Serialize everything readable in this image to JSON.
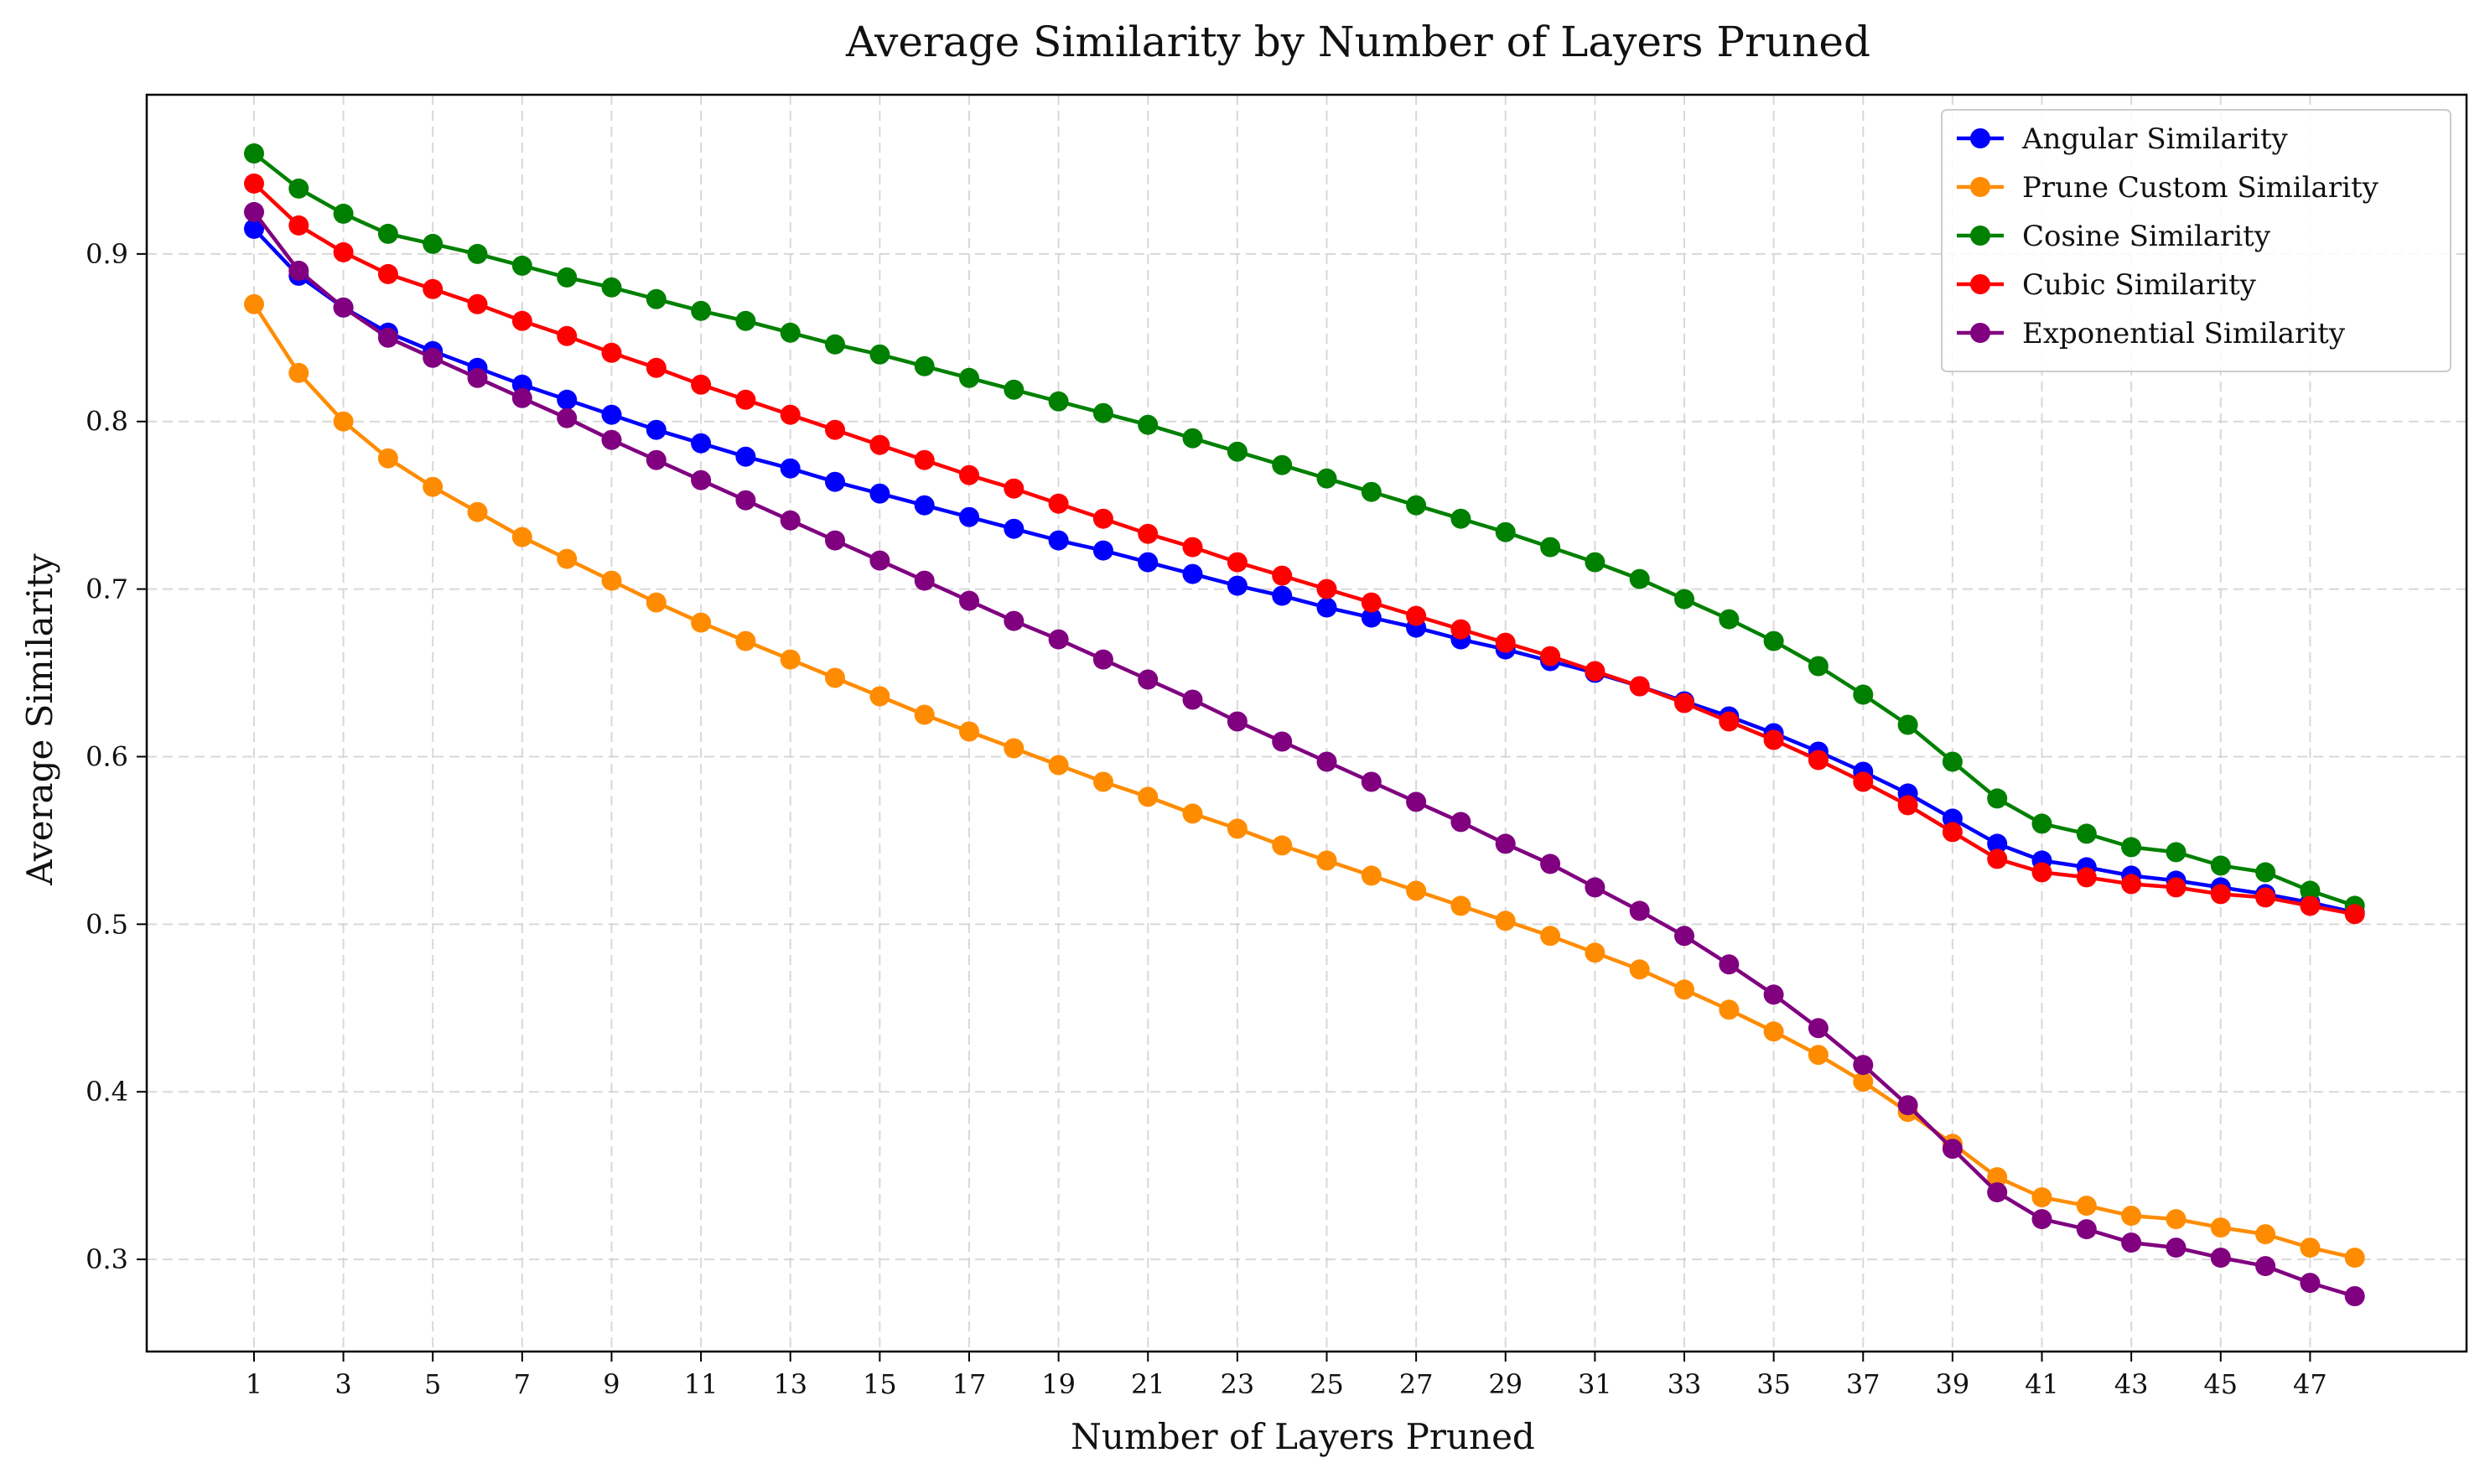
{
  "chart_data": {
    "type": "line",
    "title": "Average Similarity by Number of Layers Pruned",
    "xlabel": "Number of Layers Pruned",
    "ylabel": "Average Similarity",
    "xlim": [
      -1.4,
      50.5
    ],
    "ylim": [
      0.245,
      0.995
    ],
    "xticks": [
      1,
      3,
      5,
      7,
      9,
      11,
      13,
      15,
      17,
      19,
      21,
      23,
      25,
      27,
      29,
      31,
      33,
      35,
      37,
      39,
      41,
      43,
      45,
      47
    ],
    "yticks": [
      0.3,
      0.4,
      0.5,
      0.6,
      0.7,
      0.8,
      0.9
    ],
    "grid": true,
    "legend_position": "top-right",
    "x": [
      1,
      2,
      3,
      4,
      5,
      6,
      7,
      8,
      9,
      10,
      11,
      12,
      13,
      14,
      15,
      16,
      17,
      18,
      19,
      20,
      21,
      22,
      23,
      24,
      25,
      26,
      27,
      28,
      29,
      30,
      31,
      32,
      33,
      34,
      35,
      36,
      37,
      38,
      39,
      40,
      41,
      42,
      43,
      44,
      45,
      46,
      47,
      48
    ],
    "series": [
      {
        "name": "Angular Similarity",
        "color": "#0000ff",
        "values": [
          0.915,
          0.887,
          0.868,
          0.853,
          0.842,
          0.832,
          0.822,
          0.813,
          0.804,
          0.795,
          0.787,
          0.779,
          0.772,
          0.764,
          0.757,
          0.75,
          0.743,
          0.736,
          0.729,
          0.723,
          0.716,
          0.709,
          0.702,
          0.696,
          0.689,
          0.683,
          0.677,
          0.67,
          0.664,
          0.657,
          0.65,
          0.642,
          0.633,
          0.624,
          0.614,
          0.603,
          0.591,
          0.578,
          0.563,
          0.548,
          0.538,
          0.534,
          0.529,
          0.526,
          0.522,
          0.518,
          0.513,
          0.507
        ]
      },
      {
        "name": "Prune Custom Similarity",
        "color": "#ff8c00",
        "values": [
          0.87,
          0.829,
          0.8,
          0.778,
          0.761,
          0.746,
          0.731,
          0.718,
          0.705,
          0.692,
          0.68,
          0.669,
          0.658,
          0.647,
          0.636,
          0.625,
          0.615,
          0.605,
          0.595,
          0.585,
          0.576,
          0.566,
          0.557,
          0.547,
          0.538,
          0.529,
          0.52,
          0.511,
          0.502,
          0.493,
          0.483,
          0.473,
          0.461,
          0.449,
          0.436,
          0.422,
          0.406,
          0.388,
          0.369,
          0.349,
          0.337,
          0.332,
          0.326,
          0.324,
          0.319,
          0.315,
          0.307,
          0.301
        ]
      },
      {
        "name": "Cosine Similarity",
        "color": "#008000",
        "values": [
          0.96,
          0.939,
          0.924,
          0.912,
          0.906,
          0.9,
          0.893,
          0.886,
          0.88,
          0.873,
          0.866,
          0.86,
          0.853,
          0.846,
          0.84,
          0.833,
          0.826,
          0.819,
          0.812,
          0.805,
          0.798,
          0.79,
          0.782,
          0.774,
          0.766,
          0.758,
          0.75,
          0.742,
          0.734,
          0.725,
          0.716,
          0.706,
          0.694,
          0.682,
          0.669,
          0.654,
          0.637,
          0.619,
          0.597,
          0.575,
          0.56,
          0.554,
          0.546,
          0.543,
          0.535,
          0.531,
          0.52,
          0.511
        ]
      },
      {
        "name": "Cubic Similarity",
        "color": "#ff0000",
        "values": [
          0.942,
          0.917,
          0.901,
          0.888,
          0.879,
          0.87,
          0.86,
          0.851,
          0.841,
          0.832,
          0.822,
          0.813,
          0.804,
          0.795,
          0.786,
          0.777,
          0.768,
          0.76,
          0.751,
          0.742,
          0.733,
          0.725,
          0.716,
          0.708,
          0.7,
          0.692,
          0.684,
          0.676,
          0.668,
          0.66,
          0.651,
          0.642,
          0.632,
          0.621,
          0.61,
          0.598,
          0.585,
          0.571,
          0.555,
          0.539,
          0.531,
          0.528,
          0.524,
          0.522,
          0.518,
          0.516,
          0.511,
          0.506
        ]
      },
      {
        "name": "Exponential Similarity",
        "color": "#800080",
        "values": [
          0.925,
          0.89,
          0.868,
          0.85,
          0.838,
          0.826,
          0.814,
          0.802,
          0.789,
          0.777,
          0.765,
          0.753,
          0.741,
          0.729,
          0.717,
          0.705,
          0.693,
          0.681,
          0.67,
          0.658,
          0.646,
          0.634,
          0.621,
          0.609,
          0.597,
          0.585,
          0.573,
          0.561,
          0.548,
          0.536,
          0.522,
          0.508,
          0.493,
          0.476,
          0.458,
          0.438,
          0.416,
          0.392,
          0.366,
          0.34,
          0.324,
          0.318,
          0.31,
          0.307,
          0.301,
          0.296,
          0.286,
          0.278
        ]
      }
    ]
  }
}
